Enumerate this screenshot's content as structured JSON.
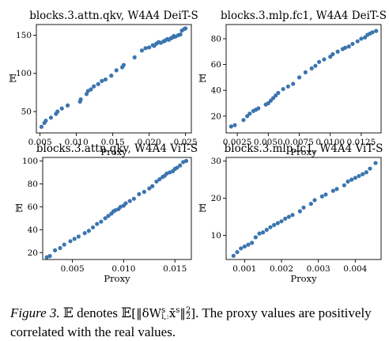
{
  "chart_data": [
    {
      "type": "scatter",
      "title": "blocks.3.attn.qkv, W4A4 DeiT-S",
      "xlabel": "Proxy",
      "ylabel": "𝔼",
      "xlim": [
        0.0045,
        0.0258
      ],
      "ylim": [
        22,
        164
      ],
      "xticks": [
        0.005,
        0.01,
        0.015,
        0.02,
        0.025
      ],
      "xtick_labels": [
        "0.005",
        "0.010",
        "0.015",
        "0.020",
        "0.025"
      ],
      "yticks": [
        50,
        100,
        150
      ],
      "ytick_labels": [
        "50",
        "100",
        "150"
      ],
      "grid": false,
      "color": "#3b75af",
      "x": [
        0.0052,
        0.0056,
        0.0058,
        0.0065,
        0.0072,
        0.0074,
        0.008,
        0.0088,
        0.0105,
        0.0106,
        0.0114,
        0.0116,
        0.012,
        0.0124,
        0.013,
        0.0135,
        0.014,
        0.0148,
        0.0155,
        0.0163,
        0.0165,
        0.018,
        0.019,
        0.0195,
        0.02,
        0.0205,
        0.0207,
        0.021,
        0.0213,
        0.0216,
        0.022,
        0.0222,
        0.0225,
        0.0227,
        0.023,
        0.0232,
        0.0234,
        0.0236,
        0.024,
        0.0243,
        0.0245,
        0.0248,
        0.025
      ],
      "y": [
        30,
        35,
        38,
        42,
        47,
        50,
        54,
        58,
        63,
        66,
        73,
        77,
        79,
        83,
        86,
        90,
        92,
        97,
        104,
        108,
        111,
        121,
        130,
        133,
        134,
        137,
        136,
        139,
        141,
        140,
        142,
        143,
        145,
        144,
        146,
        147,
        149,
        148,
        150,
        151,
        156,
        158,
        159
      ]
    },
    {
      "type": "scatter",
      "title": "blocks.3.mlp.fc1, W4A4 DeiT-S",
      "xlabel": "Proxy",
      "ylabel": "𝔼",
      "xlim": [
        0.0016,
        0.0141
      ],
      "ylim": [
        7,
        91
      ],
      "xticks": [
        0.0025,
        0.005,
        0.0075,
        0.01,
        0.0125
      ],
      "xtick_labels": [
        "0.0025",
        "0.0050",
        "0.0075",
        "0.0100",
        "0.0125"
      ],
      "yticks": [
        20,
        40,
        60,
        80
      ],
      "ytick_labels": [
        "20",
        "40",
        "60",
        "80"
      ],
      "grid": false,
      "color": "#3b75af",
      "x": [
        0.002,
        0.0023,
        0.003,
        0.0033,
        0.0035,
        0.0038,
        0.004,
        0.0042,
        0.0048,
        0.005,
        0.0052,
        0.0054,
        0.0056,
        0.0058,
        0.0062,
        0.0066,
        0.007,
        0.0075,
        0.008,
        0.0085,
        0.0088,
        0.0091,
        0.0095,
        0.01,
        0.0102,
        0.0106,
        0.011,
        0.0112,
        0.0115,
        0.0118,
        0.0122,
        0.0125,
        0.0128,
        0.013,
        0.0132,
        0.0134,
        0.0137
      ],
      "y": [
        12,
        13,
        17,
        20,
        22,
        24,
        25,
        26,
        29,
        30,
        32,
        34,
        36,
        38,
        41,
        43,
        45,
        50,
        54,
        57,
        59,
        62,
        64,
        66,
        68,
        70,
        72,
        73,
        74,
        76,
        78,
        80,
        81,
        83,
        84,
        85,
        86
      ]
    },
    {
      "type": "scatter",
      "title": "blocks.3.attn.qkv, W4A4 ViT-S",
      "xlabel": "Proxy",
      "ylabel": "𝔼",
      "xlim": [
        0.0021,
        0.0166
      ],
      "ylim": [
        14,
        103
      ],
      "xticks": [
        0.005,
        0.01,
        0.015
      ],
      "xtick_labels": [
        "0.005",
        "0.010",
        "0.015"
      ],
      "yticks": [
        20,
        40,
        60,
        80,
        100
      ],
      "ytick_labels": [
        "20",
        "40",
        "60",
        "80",
        "100"
      ],
      "grid": false,
      "color": "#3b75af",
      "x": [
        0.0025,
        0.0028,
        0.0033,
        0.0038,
        0.0042,
        0.0048,
        0.0052,
        0.0056,
        0.0062,
        0.0066,
        0.007,
        0.0074,
        0.0078,
        0.0082,
        0.0085,
        0.0088,
        0.009,
        0.0092,
        0.0095,
        0.0097,
        0.01,
        0.0102,
        0.0106,
        0.011,
        0.0115,
        0.012,
        0.0125,
        0.0128,
        0.0132,
        0.0135,
        0.0138,
        0.014,
        0.0142,
        0.0145,
        0.0148,
        0.015,
        0.0152,
        0.0155,
        0.0158,
        0.0161
      ],
      "y": [
        16,
        17,
        22,
        24,
        27,
        30,
        32,
        34,
        37,
        39,
        42,
        45,
        47,
        50,
        52,
        54,
        56,
        57,
        58,
        60,
        61,
        63,
        65,
        67,
        71,
        73,
        76,
        78,
        82,
        84,
        86,
        87,
        89,
        90,
        91,
        93,
        94,
        96,
        99,
        100
      ]
    },
    {
      "type": "scatter",
      "title": "blocks.3.mlp.fc1, W4A4 ViT-S",
      "xlabel": "Proxy",
      "ylabel": "𝔼",
      "xlim": [
        0.0005,
        0.0047
      ],
      "ylim": [
        3.5,
        31
      ],
      "xticks": [
        0.001,
        0.002,
        0.003,
        0.004
      ],
      "xtick_labels": [
        "0.001",
        "0.002",
        "0.003",
        "0.004"
      ],
      "yticks": [
        10,
        20,
        30
      ],
      "ytick_labels": [
        "10",
        "20",
        "30"
      ],
      "grid": false,
      "color": "#3b75af",
      "x": [
        0.0007,
        0.0008,
        0.0009,
        0.001,
        0.0011,
        0.0012,
        0.0013,
        0.0014,
        0.0015,
        0.0016,
        0.0017,
        0.0018,
        0.0019,
        0.002,
        0.0021,
        0.0022,
        0.0023,
        0.0025,
        0.0026,
        0.0028,
        0.0029,
        0.0031,
        0.0032,
        0.0034,
        0.0035,
        0.0037,
        0.0038,
        0.0039,
        0.004,
        0.0041,
        0.0042,
        0.0043,
        0.0044,
        0.00455
      ],
      "y": [
        4.5,
        5.5,
        6.5,
        7.0,
        7.5,
        8.0,
        9.5,
        10.5,
        10.8,
        11.5,
        12.2,
        12.8,
        13.3,
        13.8,
        14.5,
        15.0,
        15.5,
        16.5,
        17.5,
        18.5,
        19.5,
        20.5,
        21.0,
        22.0,
        22.5,
        23.5,
        24.5,
        25.0,
        25.5,
        26.0,
        26.5,
        27.0,
        28.0,
        29.5
      ]
    }
  ],
  "caption": {
    "label": "Figure 3.",
    "part1": "𝔼 denotes 𝔼",
    "formula": "[‖δW",
    "formula_sup": "s",
    "formula_sub": "i,:",
    "formula_mid": "x̄",
    "formula_sup2": "s",
    "formula_end": "‖",
    "formula_end_sup": "2",
    "formula_end_sub": "2",
    "formula_close": "]",
    "part2": ". The proxy values are positively correlated with the real values."
  }
}
